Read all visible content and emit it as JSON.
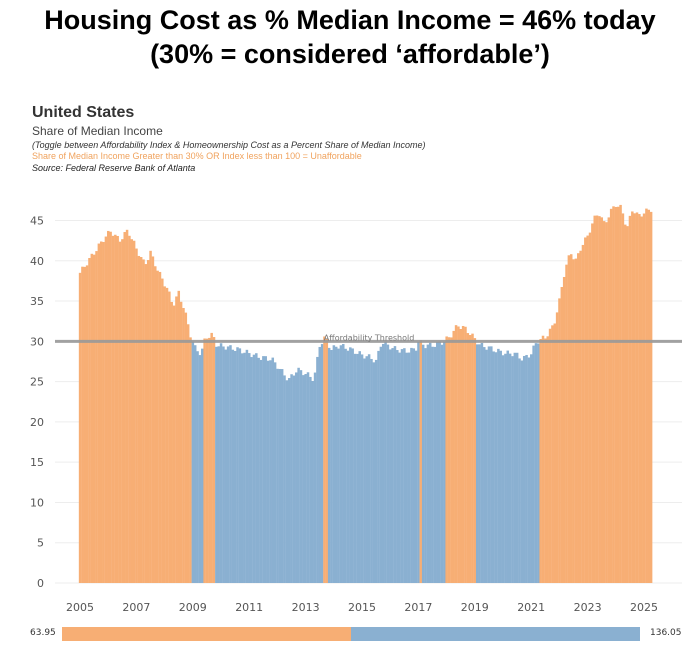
{
  "headline": {
    "line1": "Housing Cost as % Median Income = 46% today",
    "line2": "(30% = considered ‘affordable’)"
  },
  "section": {
    "title": "United States",
    "subtitle": "Share of Median Income",
    "note": "(Toggle between Affordability Index & Homeownership Cost as a Percent Share of Median Income)",
    "legend": "Share of Median Income Greater than 30% OR Index less than 100  = Unaffordable",
    "source": "Source: Federal Reserve Bank of Atlanta"
  },
  "colors": {
    "unaffordable": "#F7AE74",
    "affordable": "#8AB0D1",
    "threshold_line": "#999999"
  },
  "range_slider": {
    "min_label": "63.95",
    "max_label": "136.05",
    "split_fraction": 0.5
  },
  "chart_data": {
    "type": "bar",
    "x_ticks": [
      "2005",
      "2007",
      "2009",
      "2011",
      "2013",
      "2015",
      "2017",
      "2019",
      "2021",
      "2023",
      "2025"
    ],
    "y_ticks": [
      0,
      5,
      10,
      15,
      20,
      25,
      30,
      35,
      40,
      45
    ],
    "ylim": [
      0,
      47
    ],
    "x_range": [
      2004.5,
      2025.7
    ],
    "grid": true,
    "threshold": {
      "value": 30,
      "label": "Affordability Threshold"
    },
    "series": [
      {
        "values_by_year": [
          [
            2005.0,
            38.5
          ],
          [
            2005.3,
            40.0
          ],
          [
            2005.6,
            41.5
          ],
          [
            2005.9,
            43.0
          ],
          [
            2006.1,
            43.7
          ],
          [
            2006.4,
            42.5
          ],
          [
            2006.7,
            43.8
          ],
          [
            2007.0,
            41.5
          ],
          [
            2007.3,
            39.5
          ],
          [
            2007.5,
            41.0
          ],
          [
            2007.8,
            38.5
          ],
          [
            2008.1,
            36.5
          ],
          [
            2008.3,
            34.5
          ],
          [
            2008.5,
            36.0
          ],
          [
            2008.7,
            34.0
          ],
          [
            2008.9,
            31.0
          ],
          [
            2009.1,
            29.0
          ],
          [
            2009.3,
            28.5
          ],
          [
            2009.45,
            30.5
          ],
          [
            2009.7,
            30.8
          ],
          [
            2009.85,
            29.5
          ],
          [
            2010.2,
            29.3
          ],
          [
            2010.6,
            29.0
          ],
          [
            2011.0,
            28.5
          ],
          [
            2011.4,
            28.0
          ],
          [
            2011.8,
            27.8
          ],
          [
            2012.1,
            26.5
          ],
          [
            2012.4,
            25.2
          ],
          [
            2012.7,
            26.5
          ],
          [
            2013.0,
            26.0
          ],
          [
            2013.3,
            25.3
          ],
          [
            2013.5,
            29.5
          ],
          [
            2013.7,
            30.5
          ],
          [
            2013.9,
            29.0
          ],
          [
            2014.2,
            29.5
          ],
          [
            2014.6,
            29.0
          ],
          [
            2015.0,
            28.3
          ],
          [
            2015.3,
            28.0
          ],
          [
            2015.5,
            27.5
          ],
          [
            2015.7,
            30.0
          ],
          [
            2015.9,
            29.5
          ],
          [
            2016.2,
            29.0
          ],
          [
            2016.6,
            28.8
          ],
          [
            2016.9,
            29.0
          ],
          [
            2017.0,
            30.0
          ],
          [
            2017.2,
            29.5
          ],
          [
            2017.5,
            29.5
          ],
          [
            2017.8,
            29.8
          ],
          [
            2018.1,
            30.5
          ],
          [
            2018.4,
            32.0
          ],
          [
            2018.7,
            31.5
          ],
          [
            2019.0,
            30.3
          ],
          [
            2019.2,
            29.5
          ],
          [
            2019.5,
            29.2
          ],
          [
            2019.8,
            28.8
          ],
          [
            2020.1,
            28.5
          ],
          [
            2020.4,
            28.5
          ],
          [
            2020.7,
            27.8
          ],
          [
            2021.0,
            28.5
          ],
          [
            2021.2,
            30.0
          ],
          [
            2021.5,
            30.5
          ],
          [
            2021.8,
            32.0
          ],
          [
            2022.0,
            35.0
          ],
          [
            2022.2,
            39.0
          ],
          [
            2022.4,
            41.0
          ],
          [
            2022.6,
            40.0
          ],
          [
            2022.8,
            42.0
          ],
          [
            2023.0,
            43.0
          ],
          [
            2023.2,
            45.0
          ],
          [
            2023.4,
            46.0
          ],
          [
            2023.6,
            44.5
          ],
          [
            2023.8,
            46.0
          ],
          [
            2024.0,
            47.0
          ],
          [
            2024.2,
            46.5
          ],
          [
            2024.4,
            44.0
          ],
          [
            2024.6,
            46.5
          ],
          [
            2024.8,
            45.5
          ],
          [
            2025.0,
            46.0
          ],
          [
            2025.3,
            46.5
          ]
        ]
      }
    ]
  }
}
